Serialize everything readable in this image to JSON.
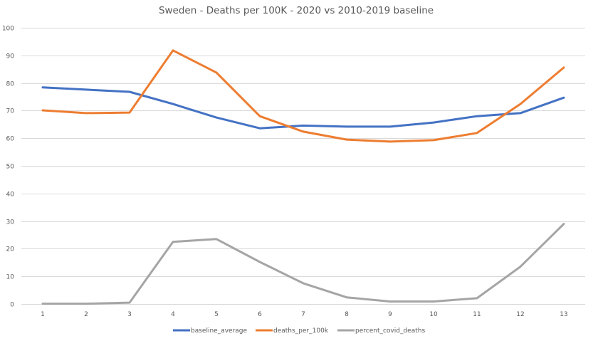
{
  "chart_data": {
    "type": "line",
    "title": "Sweden - Deaths per 100K - 2020 vs 2010-2019 baseline",
    "xlabel": "",
    "ylabel": "",
    "x": [
      1,
      2,
      3,
      4,
      5,
      6,
      7,
      8,
      9,
      10,
      11,
      12,
      13
    ],
    "ylim": [
      0,
      100
    ],
    "yticks": [
      0,
      10,
      20,
      30,
      40,
      50,
      60,
      70,
      80,
      90,
      100
    ],
    "grid": true,
    "legend_position": "bottom",
    "series": [
      {
        "name": "baseline_average",
        "color": "#4472c4",
        "values": [
          78.4,
          77.6,
          76.8,
          72.4,
          67.5,
          63.6,
          64.6,
          64.2,
          64.2,
          65.7,
          68.0,
          69.1,
          74.7
        ]
      },
      {
        "name": "deaths_per_100k",
        "color": "#ed7d31",
        "values": [
          70.1,
          69.1,
          69.3,
          91.8,
          83.8,
          68.0,
          62.4,
          59.5,
          58.8,
          59.3,
          61.9,
          72.4,
          85.6
        ]
      },
      {
        "name": "percent_covid_deaths",
        "color": "#a5a5a5",
        "values": [
          0.1,
          0.1,
          0.5,
          22.5,
          23.5,
          15.2,
          7.5,
          2.4,
          0.9,
          0.9,
          2.1,
          13.5,
          29.0
        ]
      }
    ]
  }
}
